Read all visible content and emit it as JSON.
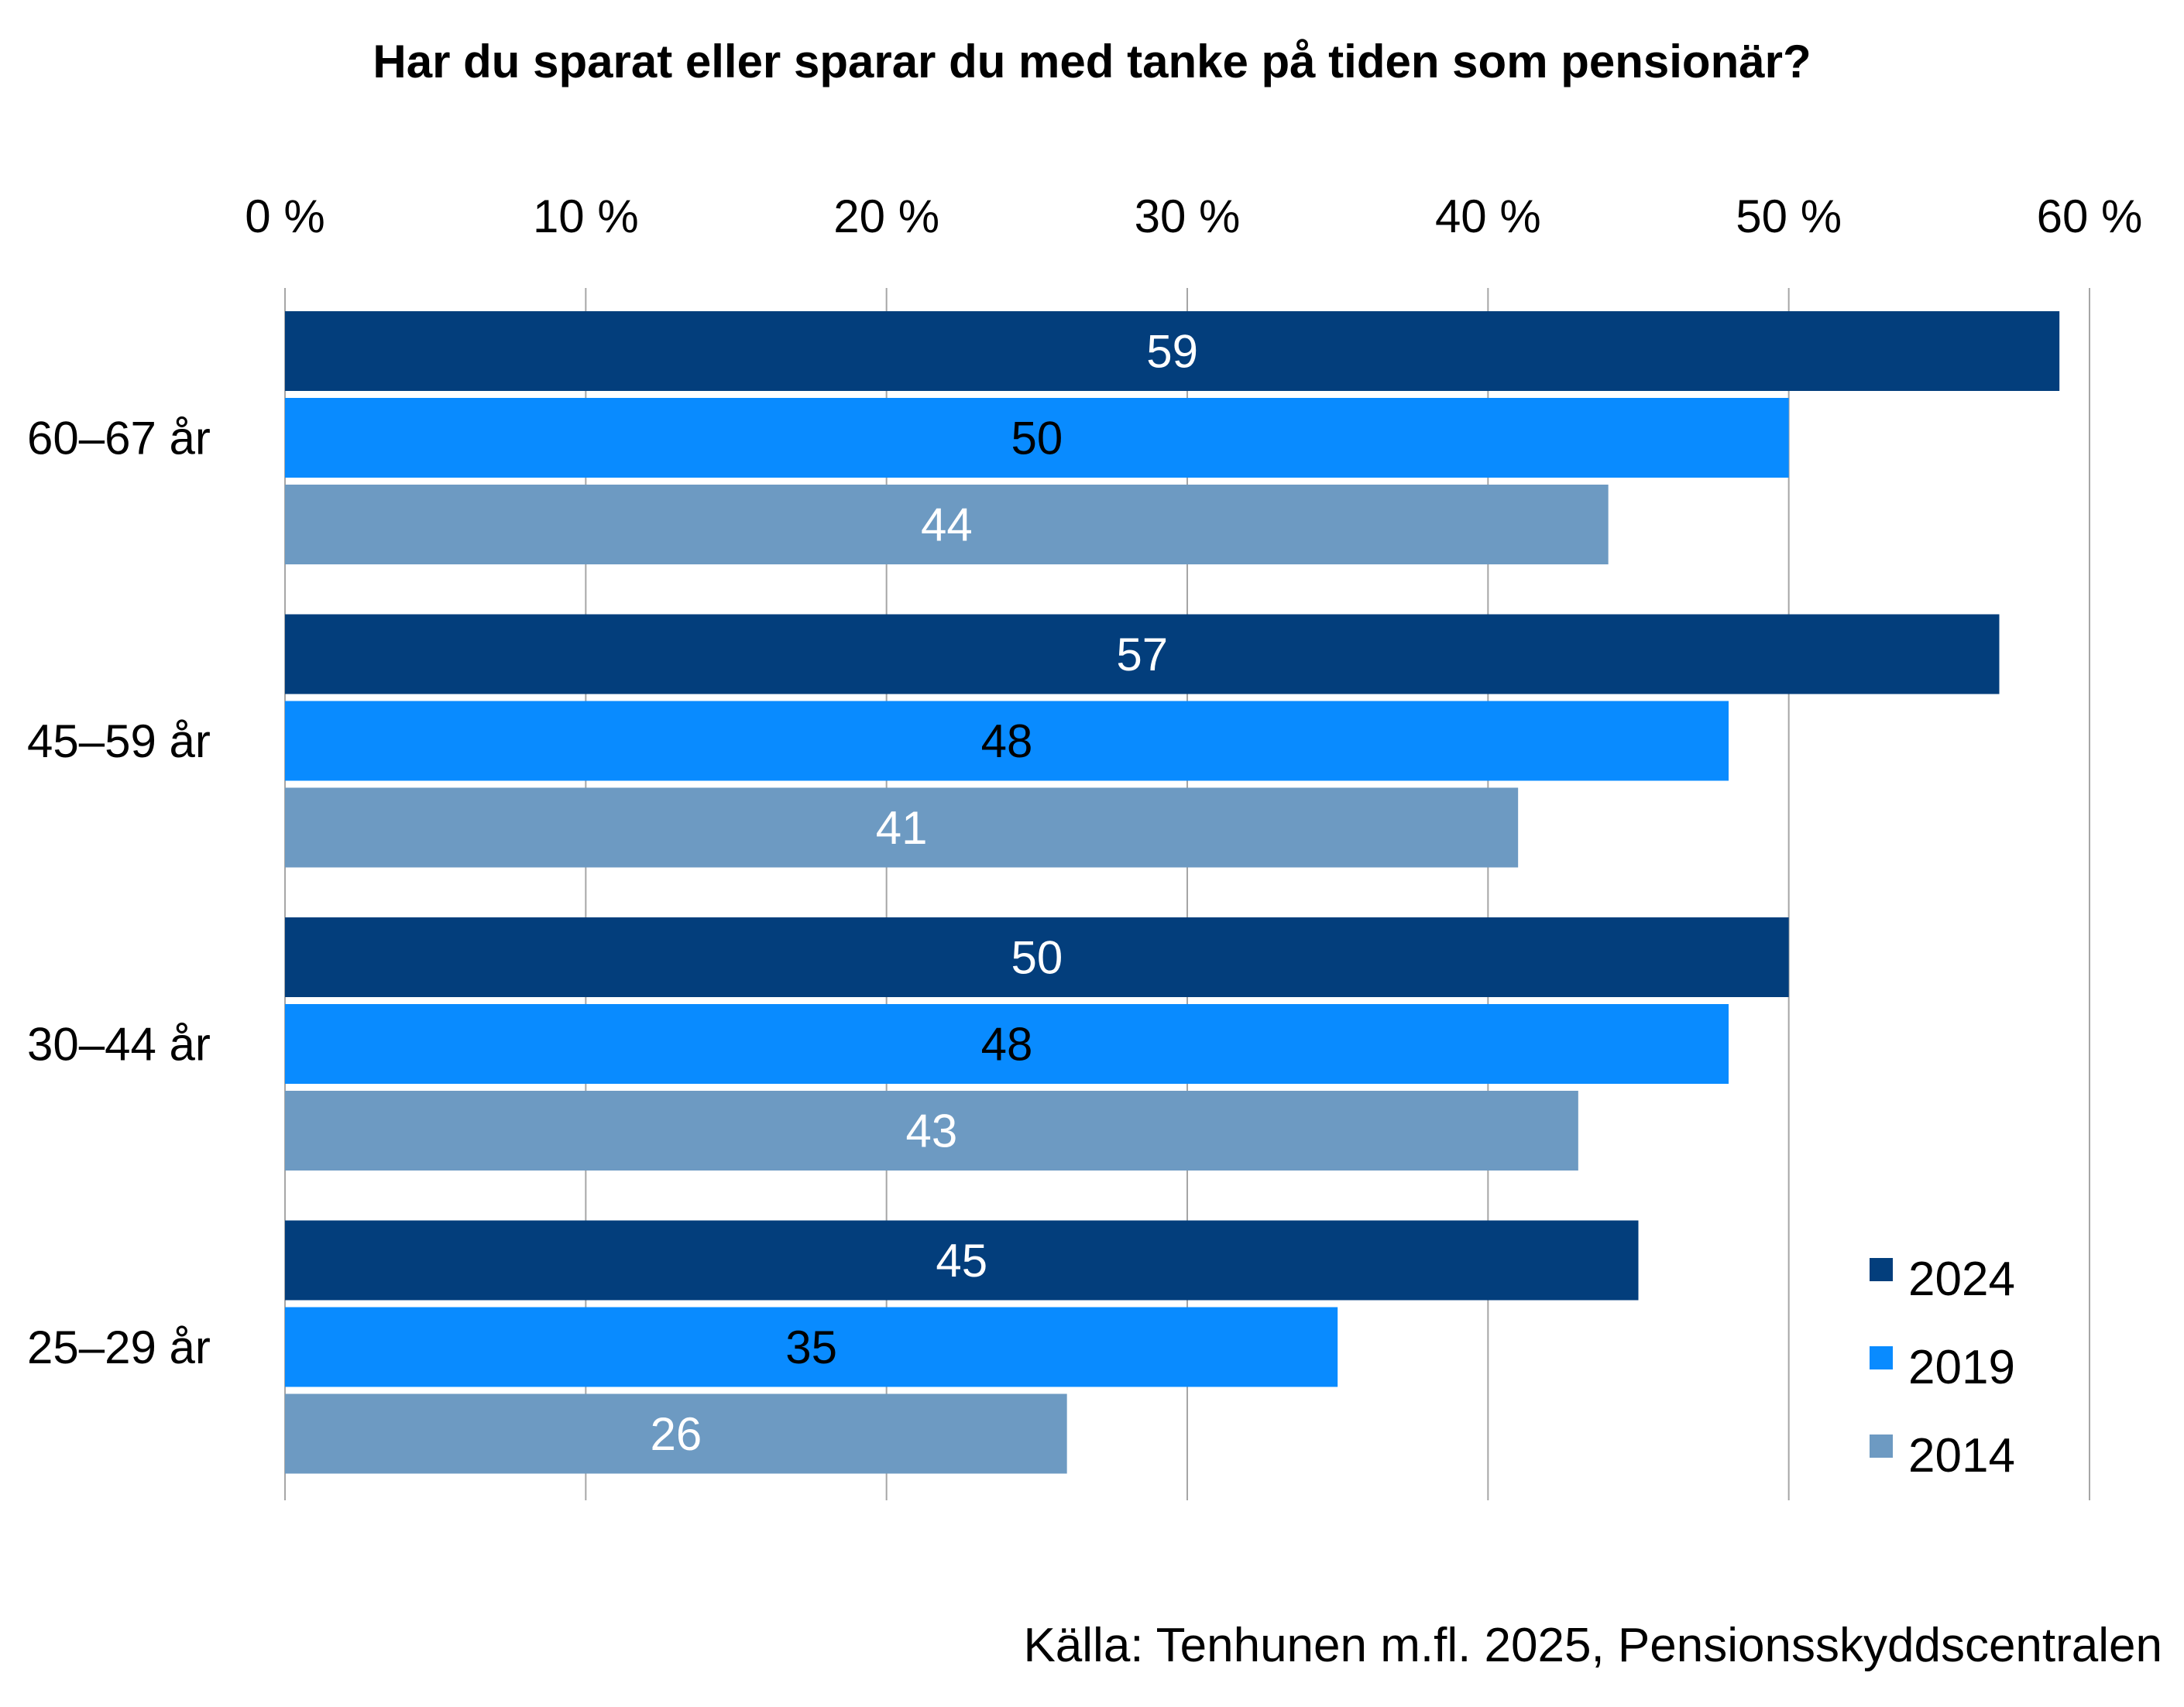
{
  "chart_data": {
    "type": "bar",
    "orientation": "horizontal",
    "title": "Har du sparat eller sparar du med tanke på tiden som pensionär?",
    "xlabel": "",
    "ylabel": "",
    "xlim": [
      0,
      60
    ],
    "x_ticks": [
      "0 %",
      "10 %",
      "20 %",
      "30 %",
      "40 %",
      "50 %",
      "60 %"
    ],
    "categories": [
      "60–67 år",
      "45–59 år",
      "30–44 år",
      "25–29 år"
    ],
    "series": [
      {
        "name": "2024",
        "color": "#033e7c",
        "label_color": "#ffffff",
        "values": [
          59,
          57,
          50,
          45
        ]
      },
      {
        "name": "2019",
        "color": "#098bff",
        "label_color": "#000000",
        "values": [
          50,
          48,
          48,
          35
        ]
      },
      {
        "name": "2014",
        "color": "#6d9ac2",
        "label_color": "#ffffff",
        "values": [
          44,
          41,
          43,
          26
        ]
      }
    ],
    "grid": true,
    "legend_position": "bottom-right",
    "source": "Källa: Tenhunen m.fl. 2025, Pensionsskyddscentralen"
  }
}
